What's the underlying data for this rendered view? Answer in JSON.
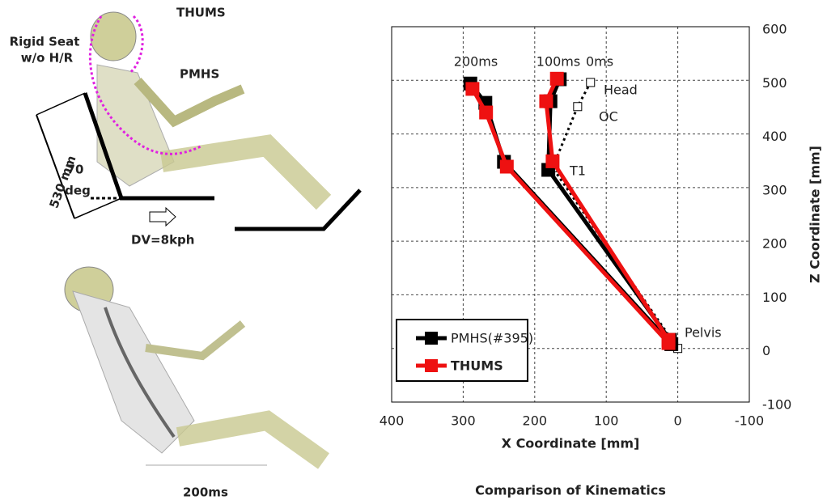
{
  "figure": {
    "thums_label": "THUMS",
    "seat_label": [
      "Rigid Seat",
      "w/o H/R"
    ],
    "pmhs_label": "PMHS",
    "length_label": "530 mm",
    "angle_label": [
      "70",
      "deg"
    ],
    "dv_label": "DV=8kph",
    "time_label": "200ms"
  },
  "chart_data": {
    "type": "line",
    "title": "Comparison of Kinematics",
    "x_label": "X Coordinate [mm]",
    "y_label": "Z Coordinate [mm]",
    "xlim": [
      400,
      -100
    ],
    "xticks": [
      400,
      300,
      200,
      100,
      0,
      -100
    ],
    "ylim": [
      -100,
      600
    ],
    "yticks": [
      600,
      500,
      400,
      300,
      200,
      100,
      0,
      -100
    ],
    "grid": true,
    "legend": "lower left",
    "annotations": [
      "200ms",
      "100ms",
      "0ms",
      "Head",
      "OC",
      "T1",
      "Pelvis"
    ],
    "series": [
      {
        "color": "#000000",
        "style": "dotted",
        "lines": [
          {
            "x": [
              0,
              175,
              140,
              122
            ],
            "y": [
              0,
              337,
              451,
              496
            ]
          }
        ]
      },
      {
        "name": "PMHS(#395)",
        "color": "#000000",
        "lines": [
          {
            "x": [
              11,
              181,
              178,
              165
            ],
            "y": [
              16,
              333,
              461,
              502
            ]
          },
          {
            "x": [
              9,
              243,
              269,
              290
            ],
            "y": [
              8,
              348,
              458,
              494
            ]
          }
        ]
      },
      {
        "name": "THUMS",
        "color": "#ee1111",
        "lines": [
          {
            "x": [
              13,
              175,
              184,
              169
            ],
            "y": [
              16,
              349,
              461,
              503
            ]
          },
          {
            "x": [
              13,
              239,
              268,
              287
            ],
            "y": [
              10,
              339,
              440,
              484
            ]
          }
        ]
      }
    ]
  }
}
